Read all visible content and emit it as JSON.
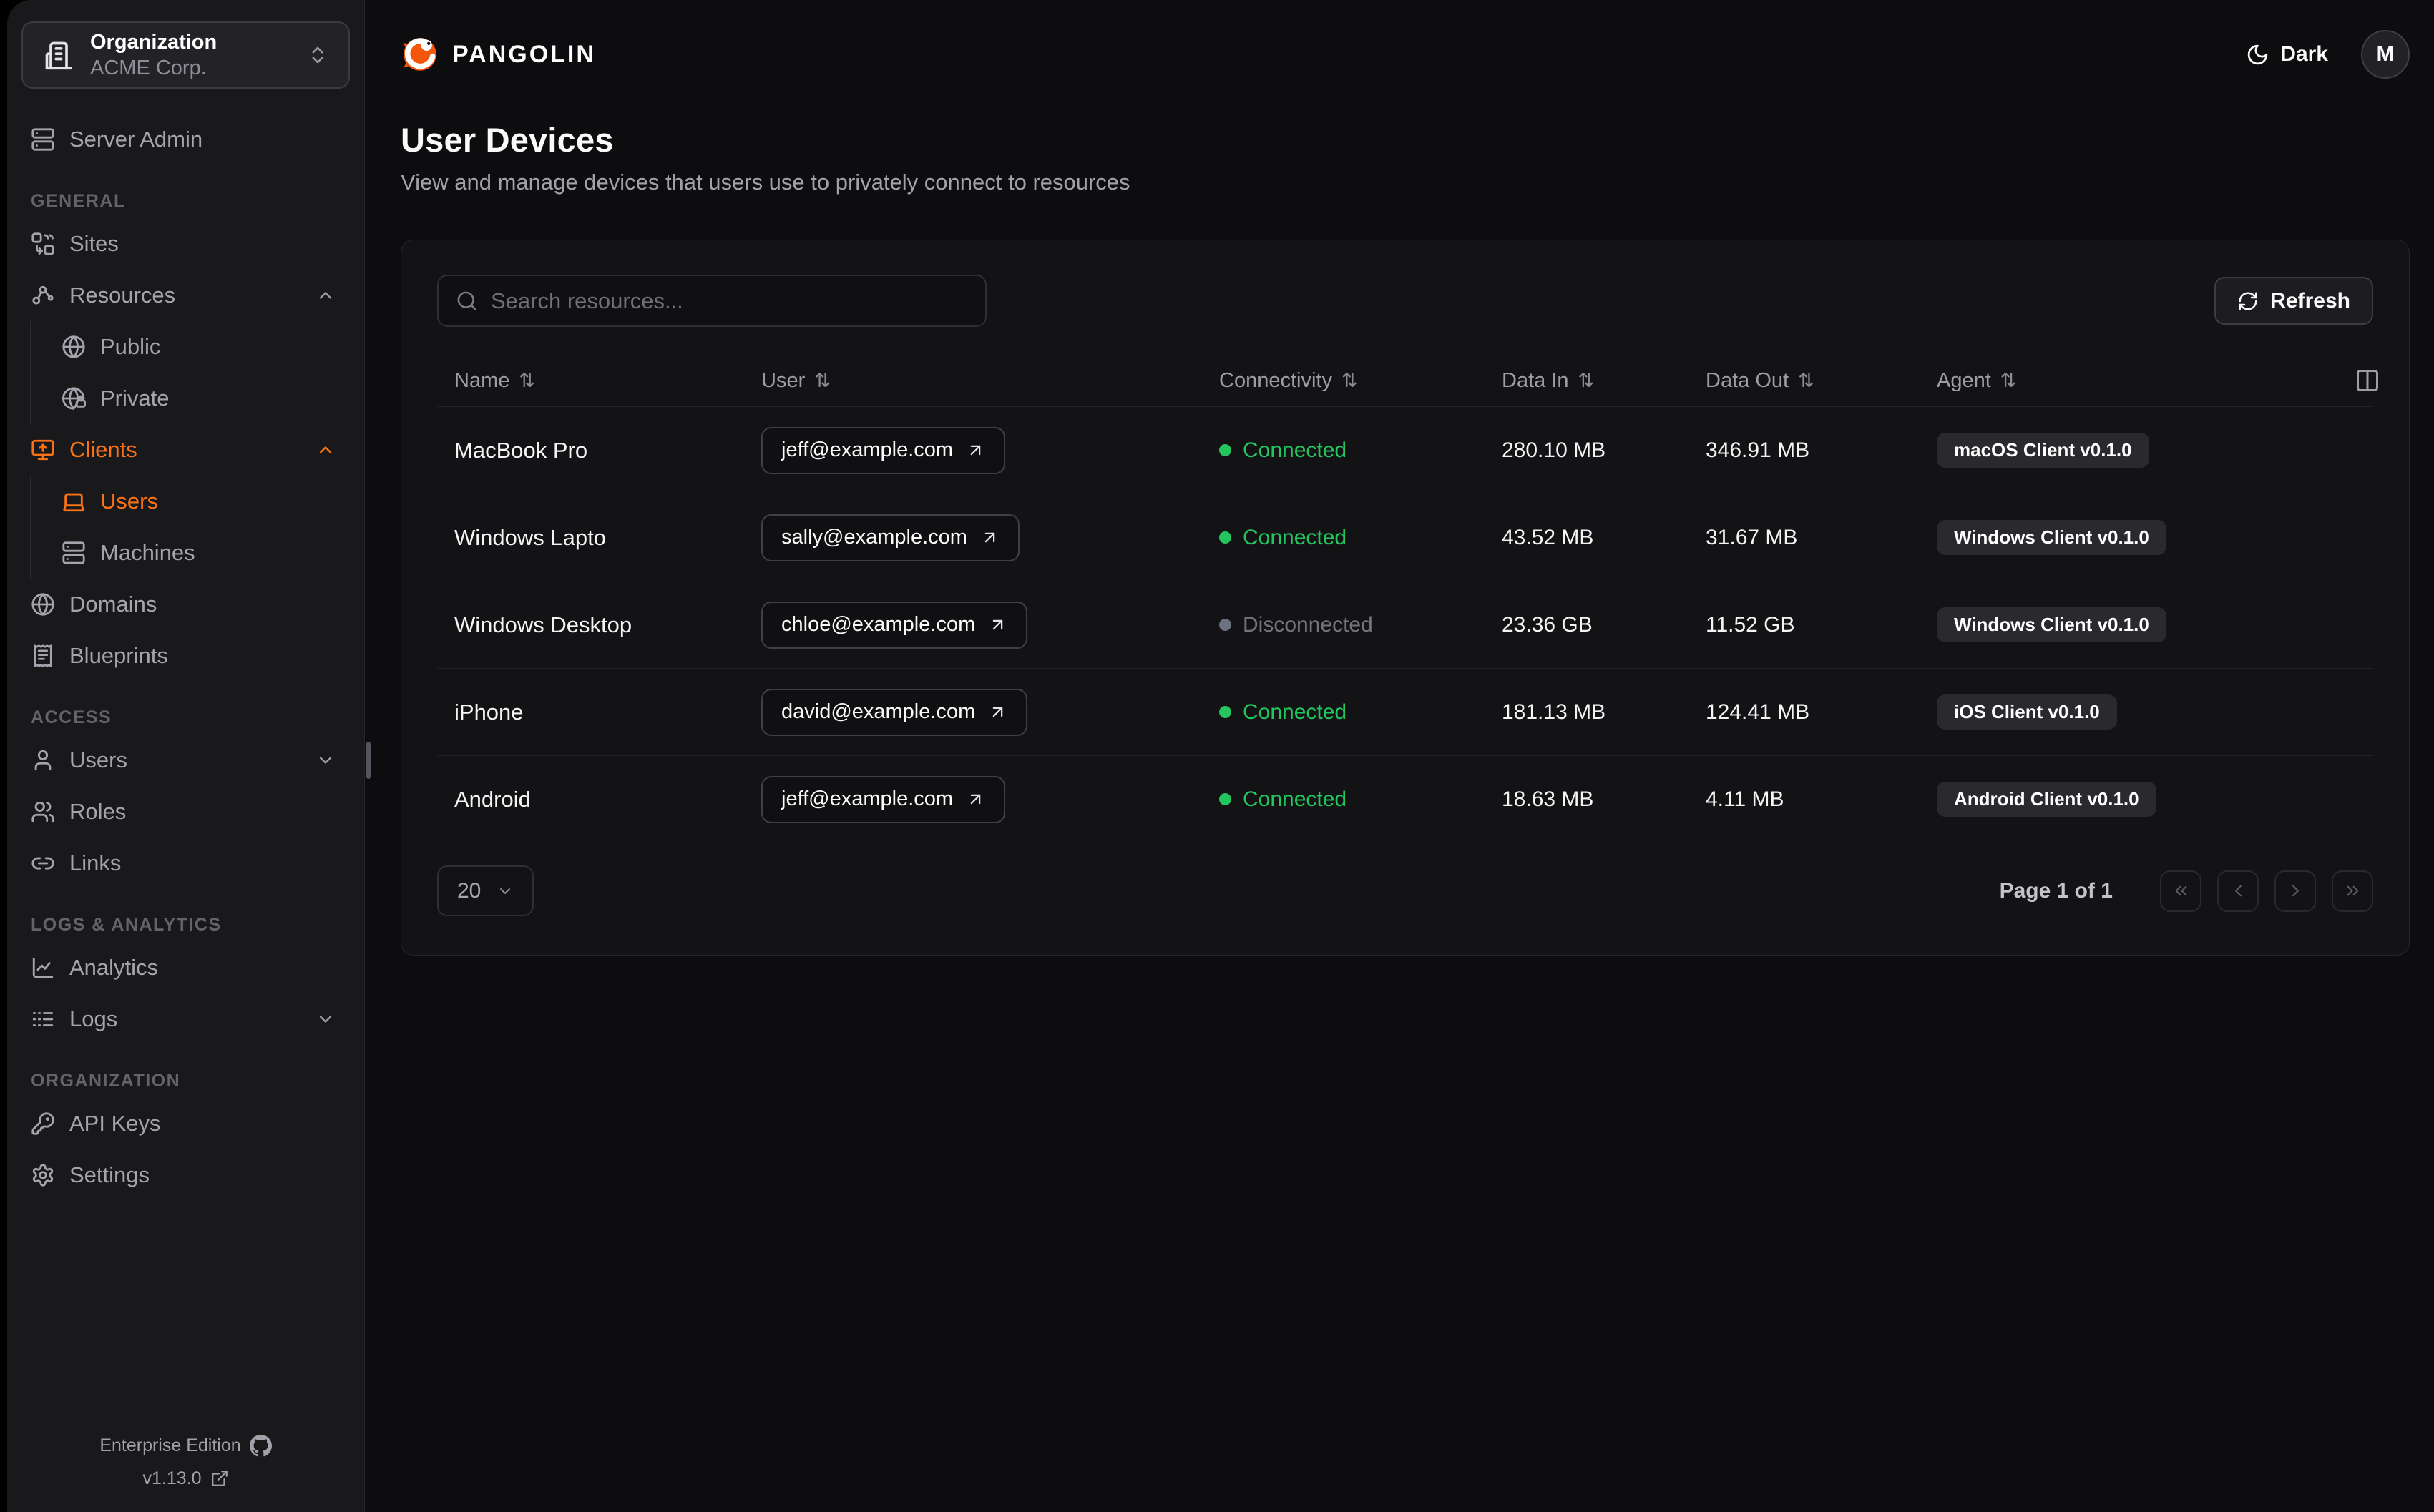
{
  "org_switcher": {
    "label": "Organization",
    "value": "ACME Corp."
  },
  "topbar": {
    "brand": "PANGOLIN",
    "theme_toggle_label": "Dark",
    "avatar_initial": "M"
  },
  "page": {
    "title": "User Devices",
    "subtitle": "View and manage devices that users use to privately connect to resources"
  },
  "toolbar": {
    "search_placeholder": "Search resources...",
    "refresh_label": "Refresh"
  },
  "sidebar": {
    "sections": [
      {
        "label": "",
        "items": [
          {
            "icon": "server",
            "label": "Server Admin"
          }
        ]
      },
      {
        "label": "GENERAL",
        "items": [
          {
            "icon": "sites",
            "label": "Sites"
          },
          {
            "icon": "resources",
            "label": "Resources",
            "chevron": "up"
          },
          {
            "icon": "globe",
            "label": "Public",
            "indent": true
          },
          {
            "icon": "globe-lock",
            "label": "Private",
            "indent": true
          },
          {
            "icon": "monitor-up",
            "label": "Clients",
            "chevron": "up",
            "active": true
          },
          {
            "icon": "laptop",
            "label": "Users",
            "indent": true,
            "active": true
          },
          {
            "icon": "server",
            "label": "Machines",
            "indent": true
          },
          {
            "icon": "globe",
            "label": "Domains"
          },
          {
            "icon": "receipt",
            "label": "Blueprints"
          }
        ]
      },
      {
        "label": "ACCESS",
        "items": [
          {
            "icon": "user",
            "label": "Users",
            "chevron": "down"
          },
          {
            "icon": "users",
            "label": "Roles"
          },
          {
            "icon": "link",
            "label": "Links"
          }
        ]
      },
      {
        "label": "LOGS & ANALYTICS",
        "items": [
          {
            "icon": "chart",
            "label": "Analytics"
          },
          {
            "icon": "logs",
            "label": "Logs",
            "chevron": "down"
          }
        ]
      },
      {
        "label": "ORGANIZATION",
        "items": [
          {
            "icon": "key",
            "label": "API Keys"
          },
          {
            "icon": "gear",
            "label": "Settings"
          }
        ]
      }
    ],
    "footer": {
      "edition": "Enterprise Edition",
      "version": "v1.13.0"
    }
  },
  "table": {
    "columns": [
      "Name",
      "User",
      "Connectivity",
      "Data In",
      "Data Out",
      "Agent"
    ],
    "rows": [
      {
        "name": "MacBook Pro",
        "user": "jeff@example.com",
        "connectivity": "Connected",
        "connected": true,
        "data_in": "280.10 MB",
        "data_out": "346.91 MB",
        "agent": "macOS Client v0.1.0"
      },
      {
        "name": "Windows Lapto",
        "user": "sally@example.com",
        "connectivity": "Connected",
        "connected": true,
        "data_in": "43.52 MB",
        "data_out": "31.67 MB",
        "agent": "Windows Client v0.1.0"
      },
      {
        "name": "Windows Desktop",
        "user": "chloe@example.com",
        "connectivity": "Disconnected",
        "connected": false,
        "data_in": "23.36 GB",
        "data_out": "11.52 GB",
        "agent": "Windows Client v0.1.0"
      },
      {
        "name": "iPhone",
        "user": "david@example.com",
        "connectivity": "Connected",
        "connected": true,
        "data_in": "181.13 MB",
        "data_out": "124.41 MB",
        "agent": "iOS Client v0.1.0"
      },
      {
        "name": "Android",
        "user": "jeff@example.com",
        "connectivity": "Connected",
        "connected": true,
        "data_in": "18.63 MB",
        "data_out": "4.11 MB",
        "agent": "Android Client v0.1.0"
      }
    ]
  },
  "pagination": {
    "page_size": "20",
    "status": "Page 1 of 1"
  },
  "colors": {
    "accent": "#f97316",
    "brand_orange": "#f4560c",
    "connected": "#22c55e",
    "disconnected": "#6b7280"
  }
}
